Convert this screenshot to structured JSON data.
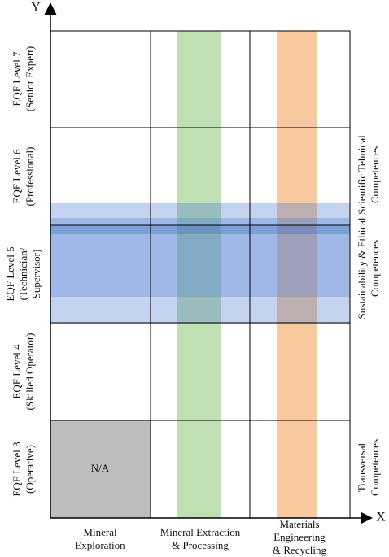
{
  "axes": {
    "y": "Y",
    "x": "X"
  },
  "levels": [
    {
      "lines": [
        "EQF Level 7",
        "(Senior Expert)"
      ]
    },
    {
      "lines": [
        "EQF Level 6",
        "(Professional)"
      ]
    },
    {
      "lines": [
        "EQF Level 5",
        "(Technician/",
        "Supervisor)"
      ]
    },
    {
      "lines": [
        "EQF Level 4",
        "(Skilled Operator)"
      ]
    },
    {
      "lines": [
        "EQF Level 3",
        "(Operative)"
      ]
    }
  ],
  "columns": [
    {
      "lines": [
        "Mineral",
        "Exploration"
      ]
    },
    {
      "lines": [
        "Mineral Extraction",
        "& Processing"
      ]
    },
    {
      "lines": [
        "Materials",
        "Engineering",
        "& Recycling"
      ]
    }
  ],
  "competences": [
    {
      "lines": [
        "Scientific Tehnical",
        "Competences"
      ]
    },
    {
      "lines": [
        "Sustainability & Ethical",
        "Competences"
      ]
    },
    {
      "lines": [
        "Transversal",
        "Competences"
      ]
    }
  ],
  "na_cell": "N/A"
}
